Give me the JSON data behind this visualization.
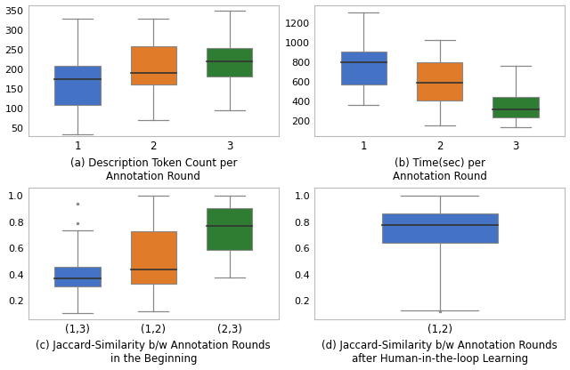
{
  "colors": [
    "#4472C4",
    "#E07B2A",
    "#2E7D32"
  ],
  "plot_a": {
    "title": "(a) Description Token Count per\nAnnotation Round",
    "xticks": [
      "1",
      "2",
      "3"
    ],
    "ylim": [
      30,
      365
    ],
    "yticks": [
      50,
      100,
      150,
      200,
      250,
      300,
      350
    ],
    "boxes": [
      {
        "med": 175,
        "q1": 110,
        "q3": 210,
        "whislo": 35,
        "whishi": 330,
        "fliers": []
      },
      {
        "med": 192,
        "q1": 163,
        "q3": 260,
        "whislo": 70,
        "whishi": 330,
        "fliers": []
      },
      {
        "med": 220,
        "q1": 183,
        "q3": 255,
        "whislo": 95,
        "whishi": 350,
        "fliers": []
      }
    ]
  },
  "plot_b": {
    "title": "(b) Time(sec) per\nAnnotation Round",
    "xticks": [
      "1",
      "2",
      "3"
    ],
    "ylim": [
      50,
      1380
    ],
    "yticks": [
      200,
      400,
      600,
      800,
      1000,
      1200
    ],
    "boxes": [
      {
        "med": 800,
        "q1": 575,
        "q3": 905,
        "whislo": 365,
        "whishi": 1305,
        "fliers": []
      },
      {
        "med": 588,
        "q1": 408,
        "q3": 800,
        "whislo": 155,
        "whishi": 1020,
        "fliers": []
      },
      {
        "med": 318,
        "q1": 240,
        "q3": 452,
        "whislo": 138,
        "whishi": 765,
        "fliers": []
      }
    ]
  },
  "plot_c": {
    "title": "(c) Jaccard-Similarity b/w Annotation Rounds\nin the Beginning",
    "xticks": [
      "(1,3)",
      "(1,2)",
      "(2,3)"
    ],
    "ylim": [
      0.06,
      1.06
    ],
    "yticks": [
      0.2,
      0.4,
      0.6,
      0.8,
      1.0
    ],
    "boxes": [
      {
        "med": 0.37,
        "q1": 0.31,
        "q3": 0.46,
        "whislo": 0.11,
        "whishi": 0.74,
        "fliers": [
          0.79,
          0.94
        ]
      },
      {
        "med": 0.44,
        "q1": 0.33,
        "q3": 0.73,
        "whislo": 0.12,
        "whishi": 1.0,
        "fliers": []
      },
      {
        "med": 0.77,
        "q1": 0.59,
        "q3": 0.91,
        "whislo": 0.38,
        "whishi": 1.0,
        "fliers": []
      }
    ]
  },
  "plot_d": {
    "title": "(d) Jaccard-Similarity b/w Annotation Rounds\nafter Human-in-the-loop Learning",
    "xticks": [
      "(1,2)"
    ],
    "ylim": [
      0.06,
      1.06
    ],
    "yticks": [
      0.2,
      0.4,
      0.6,
      0.8,
      1.0
    ],
    "boxes": [
      {
        "med": 0.78,
        "q1": 0.64,
        "q3": 0.87,
        "whislo": 0.13,
        "whishi": 1.0,
        "fliers": [
          0.12
        ]
      }
    ]
  }
}
